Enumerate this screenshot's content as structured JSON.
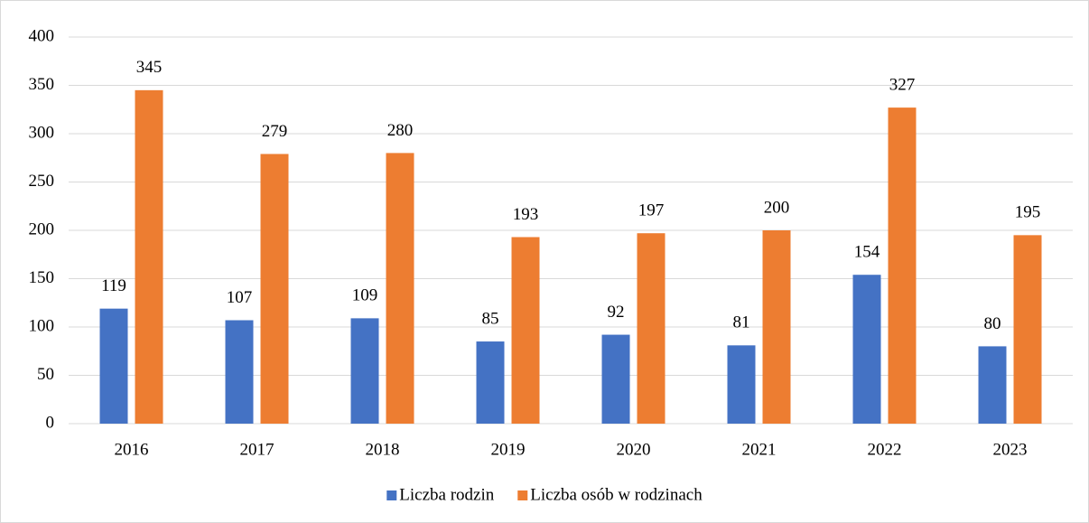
{
  "chart_data": {
    "type": "bar",
    "categories": [
      "2016",
      "2017",
      "2018",
      "2019",
      "2020",
      "2021",
      "2022",
      "2023"
    ],
    "series": [
      {
        "name": "Liczba rodzin",
        "color": "#4472c4",
        "values": [
          119,
          107,
          109,
          85,
          92,
          81,
          154,
          80
        ]
      },
      {
        "name": "Liczba osób w rodzinach",
        "color": "#ed7d31",
        "values": [
          345,
          279,
          280,
          193,
          197,
          200,
          327,
          195
        ]
      }
    ],
    "ylim": [
      0,
      400
    ],
    "yticks": [
      0,
      50,
      100,
      150,
      200,
      250,
      300,
      350,
      400
    ],
    "grid": true,
    "legend": "bottom"
  }
}
